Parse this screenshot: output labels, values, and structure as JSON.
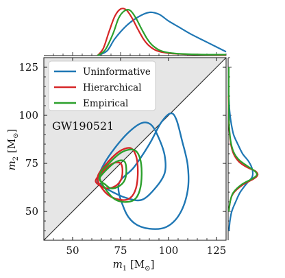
{
  "chart_data": {
    "type": "scatter",
    "annotation": "GW190521",
    "xlabel": "m",
    "xlabel_sub": "1",
    "xlabel_unit": "[M",
    "xlabel_unit_end": "]",
    "ylabel": "m",
    "ylabel_sub": "2",
    "ylabel_unit": "[M",
    "ylabel_unit_end": "]",
    "xlim": [
      35,
      130
    ],
    "ylim": [
      35,
      130
    ],
    "x_ticks": [
      50,
      75,
      100,
      125
    ],
    "y_ticks": [
      50,
      75,
      100,
      125
    ],
    "grid": false,
    "legend_position": "top-left",
    "excluded_region": "m2 > m1 (shaded grey above the diagonal)",
    "series": [
      {
        "name": "Uninformative",
        "color": "#1f77b4",
        "contours": [
          [
            [
              63,
              66
            ],
            [
              66,
              74
            ],
            [
              72,
              83
            ],
            [
              79,
              91
            ],
            [
              86,
              96
            ],
            [
              91,
              95
            ],
            [
              95,
              88
            ],
            [
              98,
              79
            ],
            [
              98,
              70
            ],
            [
              93,
              62
            ],
            [
              86,
              56
            ],
            [
              78,
              57
            ],
            [
              71,
              60
            ],
            [
              66,
              63
            ]
          ],
          [
            [
              74,
              64
            ],
            [
              82,
              73
            ],
            [
              90,
              85
            ],
            [
              96,
              96
            ],
            [
              101,
              101
            ],
            [
              104,
              98
            ],
            [
              107,
              87
            ],
            [
              110,
              74
            ],
            [
              110,
              61
            ],
            [
              106,
              49
            ],
            [
              99,
              42
            ],
            [
              90,
              41
            ],
            [
              82,
              44
            ],
            [
              77,
              51
            ]
          ]
        ],
        "m1_marginal": [
          [
            63,
            0
          ],
          [
            68,
            0.1
          ],
          [
            72,
            0.35
          ],
          [
            78,
            0.62
          ],
          [
            84,
            0.8
          ],
          [
            90,
            0.9
          ],
          [
            95,
            0.86
          ],
          [
            100,
            0.72
          ],
          [
            106,
            0.58
          ],
          [
            112,
            0.44
          ],
          [
            118,
            0.32
          ],
          [
            124,
            0.2
          ],
          [
            130,
            0.08
          ]
        ],
        "m2_marginal": [
          [
            40,
            0.03
          ],
          [
            45,
            0.06
          ],
          [
            50,
            0.12
          ],
          [
            55,
            0.25
          ],
          [
            60,
            0.4
          ],
          [
            65,
            0.64
          ],
          [
            68,
            0.8
          ],
          [
            72,
            0.8
          ],
          [
            76,
            0.68
          ],
          [
            80,
            0.48
          ],
          [
            85,
            0.32
          ],
          [
            90,
            0.18
          ],
          [
            96,
            0.1
          ],
          [
            102,
            0.05
          ],
          [
            110,
            0.02
          ]
        ]
      },
      {
        "name": "Hierarchical",
        "color": "#d62728",
        "contours": [
          [
            [
              62,
              66
            ],
            [
              66,
              71
            ],
            [
              71,
              75
            ],
            [
              75,
              75
            ],
            [
              76,
              71
            ],
            [
              75,
              66
            ],
            [
              72,
              63
            ],
            [
              68,
              62
            ],
            [
              65,
              63
            ]
          ],
          [
            [
              63,
              67
            ],
            [
              67,
              74
            ],
            [
              74,
              81
            ],
            [
              80,
              83
            ],
            [
              83,
              79
            ],
            [
              84,
              71
            ],
            [
              83,
              62
            ],
            [
              80,
              57
            ],
            [
              75,
              56
            ],
            [
              68,
              59
            ]
          ]
        ],
        "m1_marginal": [
          [
            63,
            0
          ],
          [
            66,
            0.15
          ],
          [
            69,
            0.5
          ],
          [
            72,
            0.82
          ],
          [
            75,
            0.97
          ],
          [
            78,
            0.95
          ],
          [
            81,
            0.78
          ],
          [
            84,
            0.55
          ],
          [
            87,
            0.34
          ],
          [
            90,
            0.2
          ],
          [
            94,
            0.1
          ],
          [
            100,
            0.05
          ],
          [
            108,
            0.03
          ],
          [
            118,
            0.02
          ],
          [
            130,
            0.01
          ]
        ],
        "m2_marginal": [
          [
            50,
            0.02
          ],
          [
            56,
            0.08
          ],
          [
            60,
            0.2
          ],
          [
            64,
            0.5
          ],
          [
            67,
            0.85
          ],
          [
            69,
            0.98
          ],
          [
            71,
            0.9
          ],
          [
            73,
            0.62
          ],
          [
            76,
            0.35
          ],
          [
            80,
            0.18
          ],
          [
            86,
            0.08
          ],
          [
            95,
            0.03
          ],
          [
            110,
            0.01
          ]
        ]
      },
      {
        "name": "Empirical",
        "color": "#2ca02c",
        "contours": [
          [
            [
              64,
              67
            ],
            [
              68,
              72
            ],
            [
              73,
              76
            ],
            [
              77,
              76
            ],
            [
              78,
              71
            ],
            [
              77,
              66
            ],
            [
              74,
              63
            ],
            [
              70,
              62
            ],
            [
              67,
              64
            ]
          ],
          [
            [
              64,
              68
            ],
            [
              69,
              75
            ],
            [
              76,
              81
            ],
            [
              82,
              82
            ],
            [
              85,
              78
            ],
            [
              86,
              70
            ],
            [
              85,
              61
            ],
            [
              82,
              56
            ],
            [
              76,
              55
            ],
            [
              70,
              58
            ]
          ]
        ],
        "m1_marginal": [
          [
            63,
            0
          ],
          [
            67,
            0.12
          ],
          [
            71,
            0.45
          ],
          [
            74,
            0.78
          ],
          [
            77,
            0.93
          ],
          [
            80,
            0.94
          ],
          [
            83,
            0.78
          ],
          [
            86,
            0.55
          ],
          [
            89,
            0.34
          ],
          [
            92,
            0.2
          ],
          [
            96,
            0.1
          ],
          [
            102,
            0.05
          ],
          [
            110,
            0.03
          ],
          [
            120,
            0.02
          ],
          [
            130,
            0.02
          ]
        ],
        "m2_marginal": [
          [
            50,
            0.02
          ],
          [
            56,
            0.08
          ],
          [
            60,
            0.18
          ],
          [
            64,
            0.45
          ],
          [
            67,
            0.8
          ],
          [
            69,
            0.95
          ],
          [
            71,
            0.88
          ],
          [
            74,
            0.6
          ],
          [
            77,
            0.35
          ],
          [
            81,
            0.18
          ],
          [
            87,
            0.08
          ],
          [
            96,
            0.03
          ],
          [
            110,
            0.02
          ],
          [
            125,
            0.02
          ]
        ]
      }
    ]
  }
}
